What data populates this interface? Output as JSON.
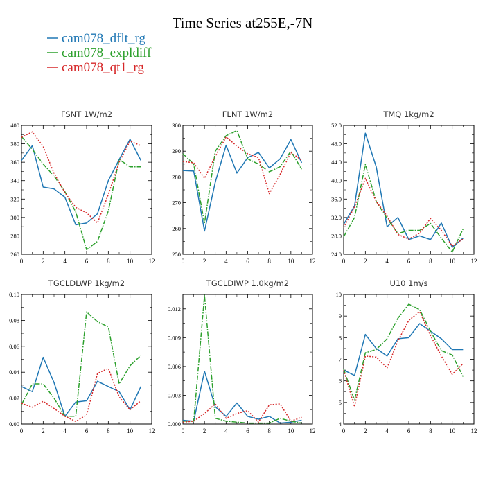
{
  "title": "Time Series at255E,-7N",
  "legend": [
    {
      "label": "cam078_dflt_rg",
      "color": "#1f77b4",
      "dash": "solid"
    },
    {
      "label": "cam078_expldiff",
      "color": "#2ca02c",
      "dash": "dashdot"
    },
    {
      "label": "cam078_qt1_rg",
      "color": "#d62728",
      "dash": "dotted"
    }
  ],
  "chart_data": [
    {
      "type": "line",
      "title": "FSNT   1W/m2",
      "x": [
        0,
        1,
        2,
        3,
        4,
        5,
        6,
        7,
        8,
        9,
        10,
        11
      ],
      "xlim": [
        0,
        12
      ],
      "xticks": [
        "0",
        "2",
        "4",
        "6",
        "8",
        "10",
        "12"
      ],
      "xtick_values": [
        0,
        2,
        4,
        6,
        8,
        10,
        12
      ],
      "ylim": [
        260,
        400
      ],
      "yticks": [
        "260",
        "280",
        "300",
        "320",
        "340",
        "360",
        "380",
        "400"
      ],
      "ytick_values": [
        260,
        280,
        300,
        320,
        340,
        360,
        380,
        400
      ],
      "series": [
        {
          "name": "cam078_dflt_rg",
          "values": [
            362,
            378,
            333,
            331,
            322,
            292,
            294,
            304,
            340,
            363,
            385,
            362
          ]
        },
        {
          "name": "cam078_expldiff",
          "values": [
            388,
            374,
            358,
            345,
            328,
            306,
            265,
            274,
            307,
            363,
            355,
            355
          ]
        },
        {
          "name": "cam078_qt1_rg",
          "values": [
            387,
            393,
            377,
            348,
            327,
            311,
            305,
            294,
            325,
            360,
            383,
            378
          ]
        }
      ]
    },
    {
      "type": "line",
      "title": "FLNT   1W/m2",
      "x": [
        0,
        1,
        2,
        3,
        4,
        5,
        6,
        7,
        8,
        9,
        10,
        11
      ],
      "xlim": [
        0,
        12
      ],
      "xticks": [
        "0",
        "2",
        "4",
        "6",
        "8",
        "10",
        "12"
      ],
      "xtick_values": [
        0,
        2,
        4,
        6,
        8,
        10,
        12
      ],
      "ylim": [
        250,
        300
      ],
      "yticks": [
        "250",
        "260",
        "270",
        "280",
        "290",
        "300"
      ],
      "ytick_values": [
        250,
        260,
        270,
        280,
        290,
        300
      ],
      "series": [
        {
          "name": "cam078_dflt_rg",
          "values": [
            282.5,
            282.3,
            259,
            278,
            292.3,
            281.5,
            287.5,
            289.5,
            283.5,
            287,
            294.5,
            285.5
          ]
        },
        {
          "name": "cam078_expldiff",
          "values": [
            289,
            285,
            262,
            290,
            296,
            298,
            287,
            285,
            282,
            284,
            290,
            283
          ]
        },
        {
          "name": "cam078_qt1_rg",
          "values": [
            286,
            285.5,
            279.5,
            288,
            295.5,
            292,
            289,
            287.5,
            273.5,
            281,
            289.5,
            286.5
          ]
        }
      ]
    },
    {
      "type": "line",
      "title": "TMQ   1kg/m2",
      "x": [
        0,
        1,
        2,
        3,
        4,
        5,
        6,
        7,
        8,
        9,
        10,
        11
      ],
      "xlim": [
        0,
        12
      ],
      "xticks": [
        "0",
        "2",
        "4",
        "6",
        "8",
        "10",
        "12"
      ],
      "xtick_values": [
        0,
        2,
        4,
        6,
        8,
        10,
        12
      ],
      "ylim": [
        24,
        52
      ],
      "yticks": [
        "24.0",
        "28.0",
        "32.0",
        "36.0",
        "40.0",
        "44.0",
        "48.0",
        "52.0"
      ],
      "ytick_values": [
        24,
        28,
        32,
        36,
        40,
        44,
        48,
        52
      ],
      "series": [
        {
          "name": "cam078_dflt_rg",
          "values": [
            30.5,
            34.5,
            50.3,
            43,
            30,
            32,
            27.2,
            28,
            27.2,
            30.8,
            25.5,
            27.5
          ]
        },
        {
          "name": "cam078_expldiff",
          "values": [
            27.8,
            32,
            43.5,
            35.5,
            31.8,
            28.5,
            29.2,
            29.2,
            30.7,
            27.5,
            24.5,
            29.5
          ]
        },
        {
          "name": "cam078_qt1_rg",
          "values": [
            29.8,
            34.3,
            40.5,
            35.5,
            32.3,
            28.3,
            27.3,
            28.6,
            31.8,
            29.2,
            25.8,
            27.3
          ]
        }
      ]
    },
    {
      "type": "line",
      "title": "TGCLDLWP   1kg/m2",
      "x": [
        0,
        1,
        2,
        3,
        4,
        5,
        6,
        7,
        8,
        9,
        10,
        11
      ],
      "xlim": [
        0,
        12
      ],
      "xticks": [
        "0",
        "2",
        "4",
        "6",
        "8",
        "10",
        "12"
      ],
      "xtick_values": [
        0,
        2,
        4,
        6,
        8,
        10,
        12
      ],
      "ylim": [
        0,
        0.1
      ],
      "yticks": [
        "0.00",
        "0.02",
        "0.04",
        "0.06",
        "0.08",
        "0.10"
      ],
      "ytick_values": [
        0,
        0.02,
        0.04,
        0.06,
        0.08,
        0.1
      ],
      "series": [
        {
          "name": "cam078_dflt_rg",
          "values": [
            0.029,
            0.025,
            0.0515,
            0.032,
            0.006,
            0.017,
            0.018,
            0.033,
            0.029,
            0.025,
            0.011,
            0.029
          ]
        },
        {
          "name": "cam078_expldiff",
          "values": [
            0.015,
            0.031,
            0.031,
            0.02,
            0.006,
            0.006,
            0.0865,
            0.079,
            0.075,
            0.031,
            0.045,
            0.053
          ]
        },
        {
          "name": "cam078_qt1_rg",
          "values": [
            0.016,
            0.013,
            0.0175,
            0.012,
            0.006,
            0.002,
            0.007,
            0.039,
            0.043,
            0.021,
            0.011,
            0.018
          ]
        }
      ]
    },
    {
      "type": "line",
      "title": "TGCLDIWP   1.0kg/m2",
      "x": [
        0,
        1,
        2,
        3,
        4,
        5,
        6,
        7,
        8,
        9,
        10,
        11
      ],
      "xlim": [
        0,
        12
      ],
      "xticks": [
        "0",
        "2",
        "4",
        "6",
        "8",
        "10",
        "12"
      ],
      "xtick_values": [
        0,
        2,
        4,
        6,
        8,
        10,
        12
      ],
      "ylim": [
        0,
        0.0135
      ],
      "yticks": [
        "0.000",
        "0.003",
        "0.006",
        "0.009",
        "0.012"
      ],
      "ytick_values": [
        0,
        0.003,
        0.006,
        0.009,
        0.012
      ],
      "series": [
        {
          "name": "cam078_dflt_rg",
          "values": [
            0.0004,
            0.0003,
            0.0055,
            0.0018,
            0.0008,
            0.0022,
            0.0008,
            0.0005,
            0.0008,
            0.0001,
            0.0002,
            0.0004
          ]
        },
        {
          "name": "cam078_expldiff",
          "values": [
            0.0003,
            0.0003,
            0.0134,
            0.0006,
            0.0003,
            0.0002,
            0.0001,
            0.0001,
            0.0001,
            0.0006,
            0.0003,
            0.0001
          ]
        },
        {
          "name": "cam078_qt1_rg",
          "values": [
            0.0002,
            0.0003,
            0.0011,
            0.0021,
            0.0006,
            0.0011,
            0.0014,
            0.0002,
            0.002,
            0.0021,
            0.0003,
            0.0007
          ]
        }
      ]
    },
    {
      "type": "line",
      "title": "U10   1m/s",
      "x": [
        0,
        1,
        2,
        3,
        4,
        5,
        6,
        7,
        8,
        9,
        10,
        11
      ],
      "xlim": [
        0,
        12
      ],
      "xticks": [
        "0",
        "2",
        "4",
        "6",
        "8",
        "10",
        "12"
      ],
      "xtick_values": [
        0,
        2,
        4,
        6,
        8,
        10,
        12
      ],
      "ylim": [
        4,
        10
      ],
      "yticks": [
        "4",
        "5",
        "6",
        "7",
        "8",
        "9",
        "10"
      ],
      "ytick_values": [
        4,
        5,
        6,
        7,
        8,
        9,
        10
      ],
      "series": [
        {
          "name": "cam078_dflt_rg",
          "values": [
            6.5,
            6.25,
            8.15,
            7.5,
            7.15,
            7.95,
            8.0,
            8.65,
            8.3,
            7.95,
            7.45,
            7.45
          ]
        },
        {
          "name": "cam078_expldiff",
          "values": [
            6.55,
            5.1,
            7.3,
            7.45,
            7.95,
            8.9,
            9.55,
            9.3,
            8.3,
            7.4,
            7.2,
            6.2
          ]
        },
        {
          "name": "cam078_qt1_rg",
          "values": [
            6.5,
            4.8,
            7.15,
            7.1,
            6.6,
            7.85,
            8.8,
            9.2,
            8.1,
            7.15,
            6.3,
            6.8
          ]
        }
      ]
    }
  ]
}
